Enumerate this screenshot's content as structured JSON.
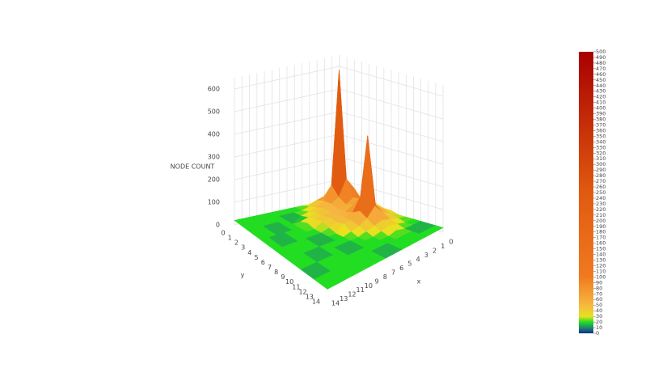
{
  "chart_data": {
    "type": "surface",
    "z_axis_title": "NODE COUNT",
    "x_axis_title": "x",
    "y_axis_title": "y",
    "x": [
      0,
      1,
      2,
      3,
      4,
      5,
      6,
      7,
      8,
      9,
      10,
      11,
      12,
      13,
      14
    ],
    "y": [
      0,
      1,
      2,
      3,
      4,
      5,
      6,
      7,
      8,
      9,
      10,
      11,
      12,
      13,
      14
    ],
    "z": [
      [
        20,
        20,
        20,
        20,
        20,
        20,
        20,
        20,
        20,
        20,
        20,
        20,
        20,
        20,
        20
      ],
      [
        20,
        30,
        40,
        60,
        50,
        30,
        20,
        20,
        20,
        20,
        20,
        20,
        20,
        20,
        20
      ],
      [
        30,
        60,
        620,
        120,
        60,
        40,
        30,
        20,
        0,
        20,
        20,
        20,
        20,
        20,
        20
      ],
      [
        40,
        100,
        150,
        80,
        60,
        50,
        40,
        30,
        20,
        20,
        20,
        0,
        20,
        20,
        20
      ],
      [
        50,
        60,
        80,
        60,
        50,
        50,
        40,
        40,
        30,
        20,
        20,
        20,
        20,
        20,
        20
      ],
      [
        40,
        50,
        60,
        70,
        50,
        60,
        50,
        40,
        20,
        20,
        20,
        20,
        0,
        20,
        20
      ],
      [
        30,
        40,
        60,
        120,
        60,
        50,
        40,
        30,
        20,
        20,
        20,
        20,
        20,
        20,
        20
      ],
      [
        30,
        50,
        80,
        400,
        80,
        50,
        50,
        20,
        20,
        0,
        20,
        20,
        20,
        20,
        20
      ],
      [
        20,
        40,
        60,
        100,
        60,
        40,
        30,
        20,
        20,
        20,
        20,
        20,
        20,
        20,
        20
      ],
      [
        20,
        30,
        40,
        50,
        40,
        30,
        20,
        20,
        20,
        20,
        20,
        0,
        20,
        20,
        20
      ],
      [
        20,
        20,
        30,
        40,
        30,
        20,
        20,
        20,
        0,
        20,
        20,
        20,
        20,
        20,
        20
      ],
      [
        20,
        20,
        20,
        30,
        20,
        20,
        20,
        20,
        20,
        20,
        20,
        20,
        20,
        0,
        20
      ],
      [
        20,
        0,
        20,
        20,
        20,
        20,
        20,
        20,
        20,
        20,
        20,
        20,
        20,
        20,
        20
      ],
      [
        20,
        20,
        20,
        20,
        20,
        20,
        0,
        20,
        20,
        20,
        20,
        20,
        20,
        20,
        20
      ],
      [
        20,
        20,
        20,
        20,
        20,
        20,
        20,
        20,
        20,
        20,
        20,
        20,
        20,
        20,
        20
      ]
    ],
    "xlim": [
      0,
      14
    ],
    "ylim": [
      0,
      14
    ],
    "zlim": [
      0,
      650
    ],
    "xticks": [
      0,
      1,
      2,
      3,
      4,
      5,
      6,
      7,
      8,
      9,
      10,
      11,
      12,
      13,
      14
    ],
    "yticks": [
      0,
      1,
      2,
      3,
      4,
      5,
      6,
      7,
      8,
      9,
      10,
      11,
      12,
      13,
      14
    ],
    "zticks": [
      0,
      100,
      200,
      300,
      400,
      500,
      600
    ],
    "colorscale": [
      [
        0,
        "#0d2f8f"
      ],
      [
        10,
        "#1e8a6a"
      ],
      [
        20,
        "#22dd22"
      ],
      [
        30,
        "#e8e020"
      ],
      [
        50,
        "#f5b840"
      ],
      [
        100,
        "#f07a20"
      ],
      [
        250,
        "#e05a10"
      ],
      [
        500,
        "#a80000"
      ]
    ],
    "clim": [
      0,
      500
    ],
    "cticks": [
      0,
      10,
      20,
      30,
      40,
      50,
      60,
      70,
      80,
      90,
      100,
      110,
      120,
      130,
      140,
      150,
      160,
      170,
      180,
      190,
      200,
      210,
      220,
      230,
      240,
      250,
      260,
      270,
      280,
      290,
      300,
      310,
      320,
      330,
      340,
      350,
      360,
      370,
      380,
      390,
      400,
      410,
      420,
      430,
      440,
      450,
      460,
      470,
      480,
      490,
      500
    ],
    "grid": true
  }
}
